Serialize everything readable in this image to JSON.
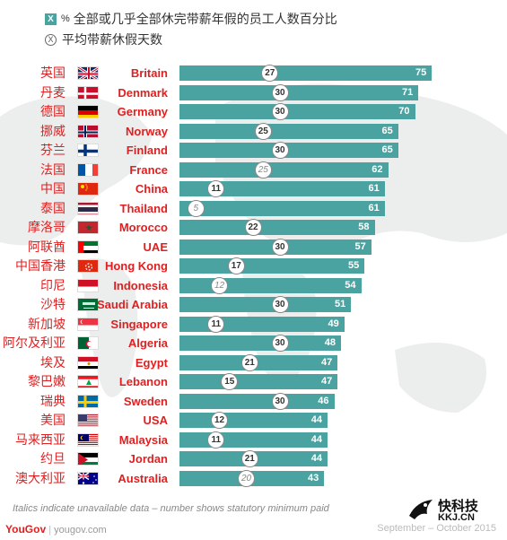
{
  "legend": {
    "pct_marker": "%",
    "pct_box_text": "X",
    "pct_label": "全部或几乎全部休完带薪年假的员工人数百分比",
    "days_box_text": "X",
    "days_label": "平均带薪休假天数"
  },
  "chart_data": {
    "type": "bar",
    "title": "",
    "xlim": [
      0,
      80
    ],
    "categories_cn": [
      "英国",
      "丹麦",
      "德国",
      "挪威",
      "芬兰",
      "法国",
      "中国",
      "泰国",
      "摩洛哥",
      "阿联酋",
      "中国香港",
      "印尼",
      "沙特",
      "新加坡",
      "阿尔及利亚",
      "埃及",
      "黎巴嫩",
      "瑞典",
      "美国",
      "马来西亚",
      "约旦",
      "澳大利亚"
    ],
    "categories": [
      "Britain",
      "Denmark",
      "Germany",
      "Norway",
      "Finland",
      "France",
      "China",
      "Thailand",
      "Morocco",
      "UAE",
      "Hong Kong",
      "Indonesia",
      "Saudi Arabia",
      "Singapore",
      "Algeria",
      "Egypt",
      "Lebanon",
      "Sweden",
      "USA",
      "Malaysia",
      "Jordan",
      "Australia"
    ],
    "series": [
      {
        "name": "全部或几乎全部休完带薪年假的员工人数百分比",
        "values": [
          75,
          71,
          70,
          65,
          65,
          62,
          61,
          61,
          58,
          57,
          55,
          54,
          51,
          49,
          48,
          47,
          47,
          46,
          44,
          44,
          44,
          43
        ]
      },
      {
        "name": "平均带薪休假天数",
        "values": [
          27,
          30,
          30,
          25,
          30,
          25,
          11,
          5,
          22,
          30,
          17,
          12,
          30,
          11,
          30,
          21,
          15,
          30,
          12,
          11,
          21,
          20
        ]
      }
    ],
    "days_italic": [
      false,
      false,
      false,
      false,
      false,
      true,
      false,
      true,
      false,
      false,
      false,
      true,
      false,
      false,
      false,
      false,
      false,
      false,
      false,
      false,
      false,
      true
    ],
    "flags": [
      "uk",
      "denmark",
      "germany",
      "norway",
      "finland",
      "france",
      "china",
      "thailand",
      "morocco",
      "uae",
      "hongkong",
      "indonesia",
      "saudi",
      "singapore",
      "algeria",
      "egypt",
      "lebanon",
      "sweden",
      "usa",
      "malaysia",
      "jordan",
      "australia"
    ],
    "colors": {
      "bar": "#4aa3a0",
      "label": "#e02020",
      "circle_border": "#888888"
    }
  },
  "footnote": "Italics indicate unavailable data – number shows statutory minimum paid",
  "footer": {
    "brand": "YouGov",
    "url": "yougov.com",
    "date": "September – October 2015"
  },
  "watermark": {
    "title": "快科技",
    "url": "KKJ.CN"
  }
}
